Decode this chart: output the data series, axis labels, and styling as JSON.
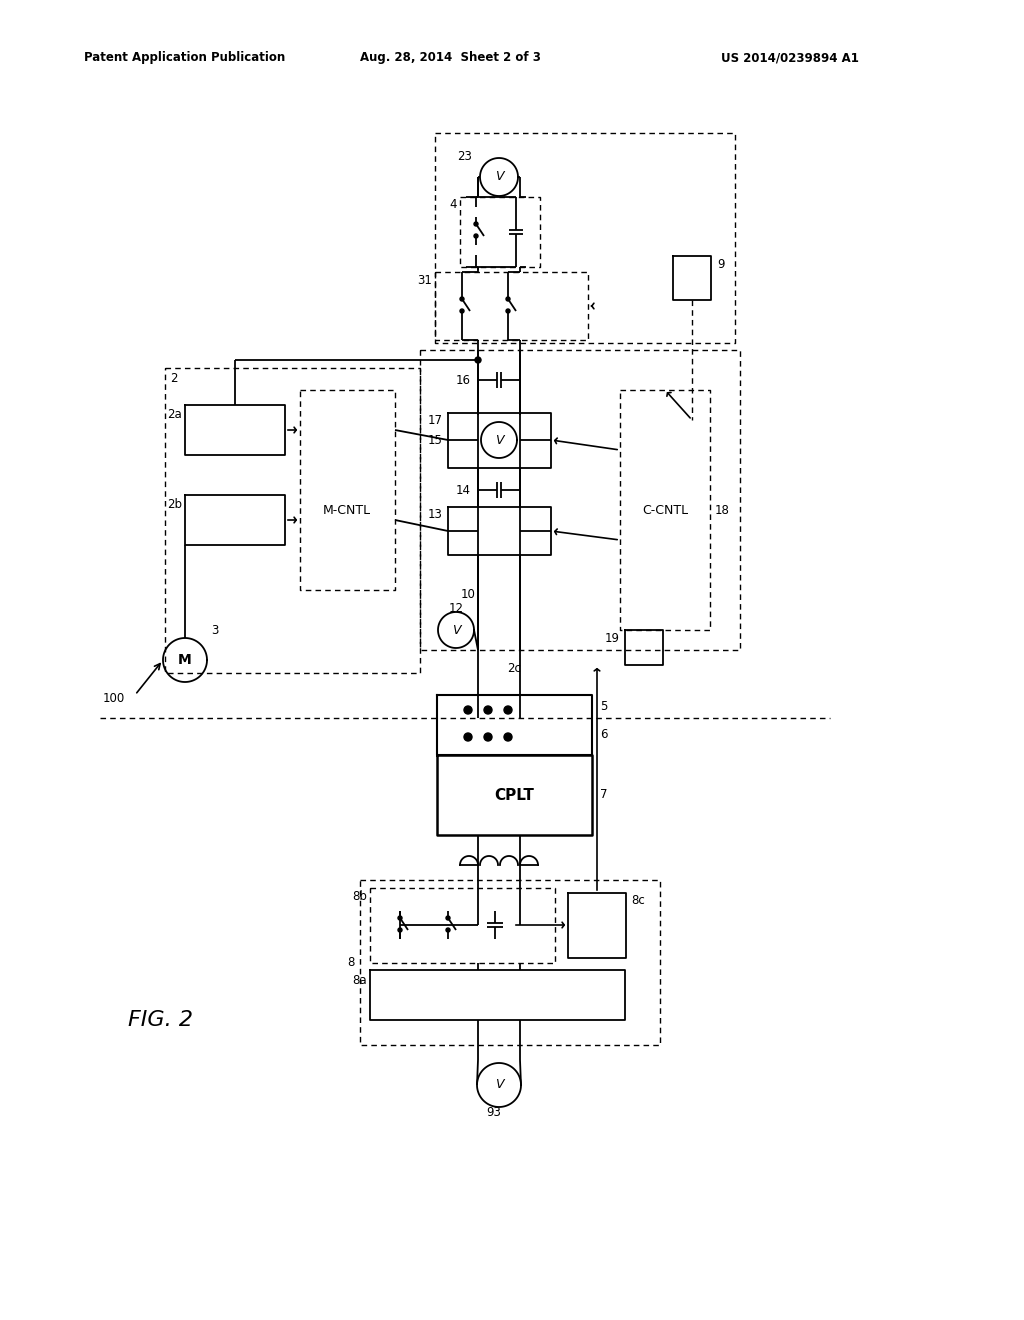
{
  "bg_color": "#ffffff",
  "header_left": "Patent Application Publication",
  "header_mid": "Aug. 28, 2014  Sheet 2 of 3",
  "header_right": "US 2014/0239894 A1",
  "fig_label": "FIG. 2"
}
